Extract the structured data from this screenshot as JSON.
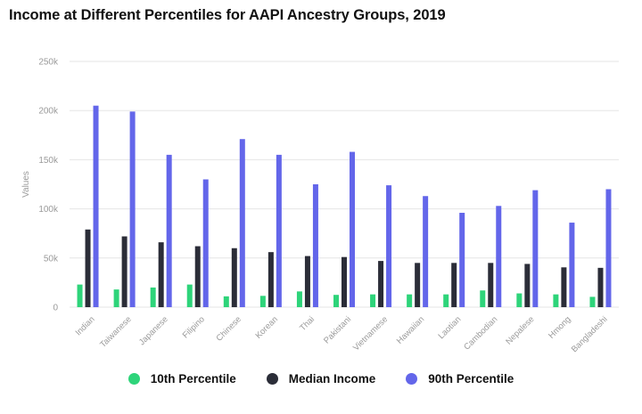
{
  "title": "Income at Different Percentiles for AAPI Ancestry Groups, 2019",
  "chart_data": {
    "type": "bar",
    "title": "Income at Different Percentiles for AAPI Ancestry Groups, 2019",
    "xlabel": "",
    "ylabel": "Values",
    "ylim": [
      0,
      250000
    ],
    "yticks": [
      0,
      50000,
      100000,
      150000,
      200000,
      250000
    ],
    "ytick_labels": [
      "0",
      "50k",
      "100k",
      "150k",
      "200k",
      "250k"
    ],
    "grid": true,
    "legend_position": "bottom",
    "categories": [
      "Indian",
      "Taiwanese",
      "Japanese",
      "Filipino",
      "Chinese",
      "Korean",
      "Thai",
      "Pakistani",
      "Vietnamese",
      "Hawaiian",
      "Laotian",
      "Cambodian",
      "Nepalese",
      "Hmong",
      "Bangladeshi"
    ],
    "series": [
      {
        "name": "10th Percentile",
        "color": "#2ed47a",
        "values": [
          23000,
          18000,
          20000,
          23000,
          11000,
          11500,
          16000,
          12500,
          13000,
          13000,
          13000,
          17000,
          14000,
          13000,
          10500
        ]
      },
      {
        "name": "Median Income",
        "color": "#2b2d38",
        "values": [
          79000,
          72000,
          66000,
          62000,
          60000,
          56000,
          52000,
          51000,
          47000,
          45000,
          45000,
          45000,
          44000,
          40500,
          40000
        ]
      },
      {
        "name": "90th Percentile",
        "color": "#6366ea",
        "values": [
          205000,
          199000,
          155000,
          130000,
          171000,
          155000,
          125000,
          158000,
          124000,
          113000,
          96000,
          103000,
          119000,
          86000,
          120000
        ]
      }
    ]
  }
}
